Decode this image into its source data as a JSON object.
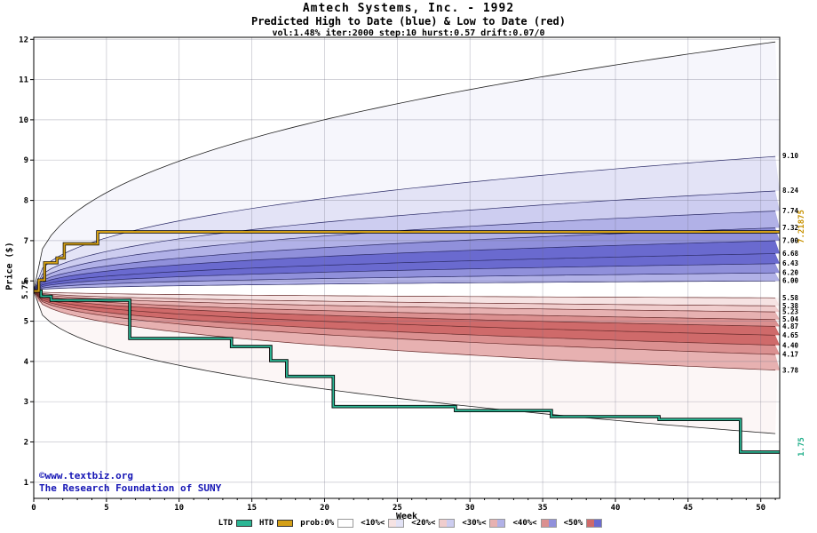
{
  "title": "Amtech Systems, Inc. - 1992",
  "subtitle": "Predicted High to Date (blue) &  Low to Date (red)",
  "params": "vol:1.48% iter:2000 step:10 hurst:0.57 drift:0.07/0",
  "ylabel": "Price ($)",
  "xlabel": "Week",
  "start_price_label": "5.75",
  "htd_final_label": "7.21875",
  "ltd_final_label": "1.75",
  "watermark_line1": "©www.textbiz.org",
  "watermark_line2": "The Research Foundation of SUNY",
  "legend": {
    "items": [
      {
        "label": "LTD",
        "type": "line",
        "color": "#2cb795"
      },
      {
        "label": "HTD",
        "type": "line",
        "color": "#d4a017"
      },
      {
        "label": "prob:0%",
        "type": "band",
        "red": "#ffffff",
        "blue": "#ffffff"
      },
      {
        "label": "<10%<",
        "type": "band",
        "red": "#f6e3e3",
        "blue": "#e3e3f6"
      },
      {
        "label": "<20%<",
        "type": "band",
        "red": "#f0cdcd",
        "blue": "#cdcdf0"
      },
      {
        "label": "<30%<",
        "type": "band",
        "red": "#e7b1b1",
        "blue": "#b1b1e7"
      },
      {
        "label": "<40%<",
        "type": "band",
        "red": "#db9090",
        "blue": "#9090db"
      },
      {
        "label": "<50%",
        "type": "band",
        "red": "#cf6a6a",
        "blue": "#6a6acf"
      }
    ]
  },
  "chart_data": {
    "type": "fan",
    "title": "Amtech Systems, Inc. - 1992",
    "xlabel": "Week",
    "ylabel": "Price ($)",
    "x_ticks": [
      0,
      5,
      10,
      15,
      20,
      25,
      30,
      35,
      40,
      45,
      50
    ],
    "y_ticks": [
      1,
      2,
      3,
      4,
      5,
      6,
      7,
      8,
      9,
      10,
      11,
      12
    ],
    "ylim": [
      1,
      12
    ],
    "weeks_extent": 51.3,
    "start_price": 5.75,
    "shape_exponent": 0.4,
    "high_quantiles": [
      "9.10",
      "8.24",
      "7.74",
      "7.32",
      "7.00",
      "6.68",
      "6.43",
      "6.20",
      "6.00"
    ],
    "low_quantiles": [
      "5.58",
      "5.38",
      "5.23",
      "5.04",
      "4.87",
      "4.65",
      "4.40",
      "4.17",
      "3.78"
    ],
    "high_envelope": 11.95,
    "low_envelope": 2.2,
    "band_color_index": [
      0,
      1,
      2,
      3,
      4,
      5,
      5,
      4,
      3
    ],
    "palette_blue": [
      "#f6f6fc",
      "#e3e3f6",
      "#cdcdf0",
      "#b1b1e7",
      "#9090db",
      "#6a6acf"
    ],
    "palette_red": [
      "#fcf6f6",
      "#f6e3e3",
      "#f0cdcd",
      "#e7b1b1",
      "#db9090",
      "#cf6a6a"
    ],
    "htd_final": 7.21875,
    "ltd_final": 1.75,
    "htd_steps": [
      [
        0,
        5.75
      ],
      [
        0.35,
        5.75
      ],
      [
        0.35,
        6.02
      ],
      [
        0.75,
        6.02
      ],
      [
        0.75,
        6.45
      ],
      [
        1.6,
        6.45
      ],
      [
        1.6,
        6.57
      ],
      [
        2.1,
        6.57
      ],
      [
        2.1,
        6.92
      ],
      [
        4.4,
        6.92
      ],
      [
        4.4,
        7.21875
      ],
      [
        51.3,
        7.21875
      ]
    ],
    "ltd_steps": [
      [
        0,
        5.75
      ],
      [
        0.5,
        5.75
      ],
      [
        0.5,
        5.62
      ],
      [
        1.2,
        5.62
      ],
      [
        1.2,
        5.52
      ],
      [
        6.6,
        5.52
      ],
      [
        6.6,
        4.57
      ],
      [
        13.6,
        4.57
      ],
      [
        13.6,
        4.37
      ],
      [
        16.3,
        4.37
      ],
      [
        16.3,
        4.02
      ],
      [
        17.4,
        4.02
      ],
      [
        17.4,
        3.63
      ],
      [
        20.6,
        3.63
      ],
      [
        20.6,
        2.88
      ],
      [
        29,
        2.88
      ],
      [
        29,
        2.78
      ],
      [
        35.6,
        2.78
      ],
      [
        35.6,
        2.63
      ],
      [
        43,
        2.63
      ],
      [
        43,
        2.56
      ],
      [
        48.6,
        2.56
      ],
      [
        48.6,
        1.75
      ],
      [
        51.3,
        1.75
      ]
    ],
    "colors": {
      "htd": "#d4a017",
      "ltd": "#2cb795",
      "high_line": "#2a2a66",
      "low_line": "#662a2a",
      "envelope": "#222222",
      "grid": "rgba(110,110,130,0.4)"
    }
  }
}
